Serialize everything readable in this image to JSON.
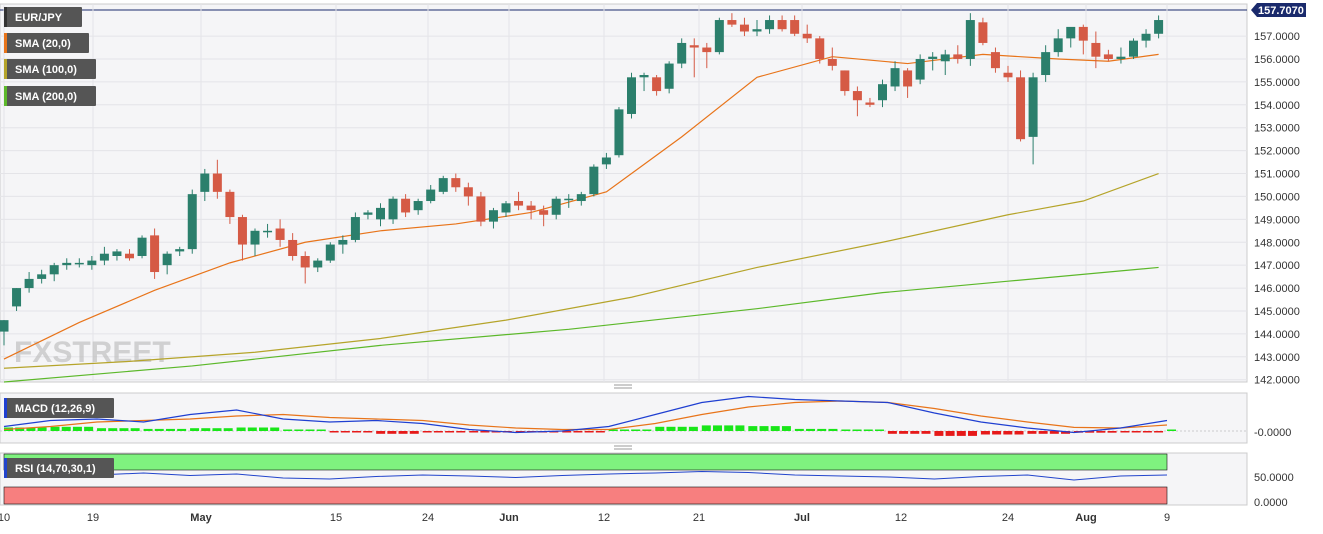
{
  "instrument": "EUR/JPY",
  "watermark": "FXSTREET",
  "legend": [
    {
      "label": "EUR/JPY",
      "color": "#555555"
    },
    {
      "label": "SMA (20,0)",
      "color": "#e8741a"
    },
    {
      "label": "SMA (100,0)",
      "color": "#b5a42a"
    },
    {
      "label": "SMA (200,0)",
      "color": "#5cb82a"
    }
  ],
  "macd": {
    "label": "MACD (12,26,9)",
    "value_label": "-0.0000"
  },
  "rsi": {
    "label": "RSI (14,70,30,1)",
    "ticks": [
      "50.0000",
      "0.0000"
    ]
  },
  "colors": {
    "up": "#2b7f6c",
    "down": "#d55a45",
    "sma20": "#e8741a",
    "sma100": "#b5a42a",
    "sma200": "#5cb82a",
    "macd": "#1f3fd1",
    "signal": "#e8741a",
    "hist_pos": "#19e619",
    "hist_neg": "#e61919",
    "rsi_line": "#2244cc",
    "rsi_upper": "#7ff27f",
    "rsi_lower": "#f77f7f"
  },
  "chart_data": {
    "type": "candlestick",
    "y_ticks": [
      "157.0000",
      "156.0000",
      "155.0000",
      "154.0000",
      "153.0000",
      "152.0000",
      "151.0000",
      "150.0000",
      "149.0000",
      "148.0000",
      "147.0000",
      "146.0000",
      "145.0000",
      "144.0000",
      "143.0000",
      "142.0000"
    ],
    "ylim": [
      141.9,
      158.4
    ],
    "last_price": "157.7070",
    "x_labels": [
      "10",
      "19",
      "May",
      "15",
      "24",
      "Jun",
      "12",
      "21",
      "Jul",
      "12",
      "24",
      "Aug",
      "9"
    ],
    "candles": [
      {
        "o": 144.1,
        "h": 144.6,
        "l": 143.5,
        "c": 144.6
      },
      {
        "o": 145.2,
        "h": 146.0,
        "l": 145.0,
        "c": 146.0
      },
      {
        "o": 146.0,
        "h": 146.7,
        "l": 145.8,
        "c": 146.4
      },
      {
        "o": 146.4,
        "h": 146.8,
        "l": 146.2,
        "c": 146.6
      },
      {
        "o": 146.6,
        "h": 147.1,
        "l": 146.3,
        "c": 147.0
      },
      {
        "o": 147.0,
        "h": 147.3,
        "l": 146.8,
        "c": 147.1
      },
      {
        "o": 147.1,
        "h": 147.3,
        "l": 146.9,
        "c": 147.1
      },
      {
        "o": 147.0,
        "h": 147.4,
        "l": 146.8,
        "c": 147.2
      },
      {
        "o": 147.2,
        "h": 147.8,
        "l": 147.0,
        "c": 147.5
      },
      {
        "o": 147.4,
        "h": 147.7,
        "l": 147.2,
        "c": 147.6
      },
      {
        "o": 147.5,
        "h": 147.7,
        "l": 147.2,
        "c": 147.3
      },
      {
        "o": 147.4,
        "h": 148.3,
        "l": 147.3,
        "c": 148.2
      },
      {
        "o": 148.3,
        "h": 148.6,
        "l": 146.4,
        "c": 146.7
      },
      {
        "o": 147.0,
        "h": 147.6,
        "l": 146.6,
        "c": 147.5
      },
      {
        "o": 147.6,
        "h": 147.8,
        "l": 147.4,
        "c": 147.7
      },
      {
        "o": 147.7,
        "h": 150.3,
        "l": 147.5,
        "c": 150.1
      },
      {
        "o": 150.2,
        "h": 151.2,
        "l": 149.8,
        "c": 151.0
      },
      {
        "o": 151.0,
        "h": 151.6,
        "l": 149.9,
        "c": 150.2
      },
      {
        "o": 150.2,
        "h": 150.3,
        "l": 148.8,
        "c": 149.1
      },
      {
        "o": 149.1,
        "h": 149.2,
        "l": 147.2,
        "c": 147.9
      },
      {
        "o": 147.9,
        "h": 148.6,
        "l": 147.4,
        "c": 148.5
      },
      {
        "o": 148.5,
        "h": 148.8,
        "l": 148.2,
        "c": 148.5
      },
      {
        "o": 148.6,
        "h": 149.0,
        "l": 147.8,
        "c": 148.1
      },
      {
        "o": 148.1,
        "h": 148.4,
        "l": 147.2,
        "c": 147.4
      },
      {
        "o": 147.4,
        "h": 147.6,
        "l": 146.2,
        "c": 146.9
      },
      {
        "o": 146.9,
        "h": 147.3,
        "l": 146.7,
        "c": 147.2
      },
      {
        "o": 147.2,
        "h": 148.0,
        "l": 147.1,
        "c": 147.9
      },
      {
        "o": 147.9,
        "h": 148.3,
        "l": 147.5,
        "c": 148.1
      },
      {
        "o": 148.1,
        "h": 149.3,
        "l": 148.0,
        "c": 149.1
      },
      {
        "o": 149.2,
        "h": 149.4,
        "l": 149.0,
        "c": 149.3
      },
      {
        "o": 149.0,
        "h": 149.7,
        "l": 148.7,
        "c": 149.5
      },
      {
        "o": 149.0,
        "h": 150.0,
        "l": 148.8,
        "c": 149.9
      },
      {
        "o": 149.9,
        "h": 150.1,
        "l": 149.1,
        "c": 149.3
      },
      {
        "o": 149.4,
        "h": 149.9,
        "l": 149.2,
        "c": 149.8
      },
      {
        "o": 149.8,
        "h": 150.5,
        "l": 149.7,
        "c": 150.3
      },
      {
        "o": 150.2,
        "h": 150.9,
        "l": 150.1,
        "c": 150.8
      },
      {
        "o": 150.8,
        "h": 151.0,
        "l": 150.2,
        "c": 150.4
      },
      {
        "o": 150.4,
        "h": 150.6,
        "l": 149.6,
        "c": 150.0
      },
      {
        "o": 150.0,
        "h": 150.2,
        "l": 148.7,
        "c": 148.9
      },
      {
        "o": 148.9,
        "h": 149.5,
        "l": 148.6,
        "c": 149.4
      },
      {
        "o": 149.3,
        "h": 149.8,
        "l": 149.1,
        "c": 149.7
      },
      {
        "o": 149.8,
        "h": 150.2,
        "l": 149.4,
        "c": 149.6
      },
      {
        "o": 149.6,
        "h": 149.8,
        "l": 149.0,
        "c": 149.4
      },
      {
        "o": 149.4,
        "h": 149.6,
        "l": 148.7,
        "c": 149.2
      },
      {
        "o": 149.2,
        "h": 150.0,
        "l": 149.0,
        "c": 149.9
      },
      {
        "o": 149.9,
        "h": 150.1,
        "l": 149.5,
        "c": 149.9
      },
      {
        "o": 149.8,
        "h": 150.2,
        "l": 149.6,
        "c": 150.1
      },
      {
        "o": 150.1,
        "h": 151.4,
        "l": 150.0,
        "c": 151.3
      },
      {
        "o": 151.4,
        "h": 151.9,
        "l": 151.2,
        "c": 151.7
      },
      {
        "o": 151.8,
        "h": 153.9,
        "l": 151.7,
        "c": 153.8
      },
      {
        "o": 153.6,
        "h": 155.4,
        "l": 153.4,
        "c": 155.2
      },
      {
        "o": 155.2,
        "h": 155.4,
        "l": 154.6,
        "c": 155.3
      },
      {
        "o": 155.2,
        "h": 155.3,
        "l": 154.4,
        "c": 154.6
      },
      {
        "o": 154.7,
        "h": 155.9,
        "l": 154.5,
        "c": 155.8
      },
      {
        "o": 155.8,
        "h": 156.9,
        "l": 155.6,
        "c": 156.7
      },
      {
        "o": 156.6,
        "h": 156.9,
        "l": 155.2,
        "c": 156.5
      },
      {
        "o": 156.5,
        "h": 156.7,
        "l": 155.6,
        "c": 156.3
      },
      {
        "o": 156.3,
        "h": 157.8,
        "l": 156.2,
        "c": 157.7
      },
      {
        "o": 157.7,
        "h": 158.0,
        "l": 157.4,
        "c": 157.5
      },
      {
        "o": 157.5,
        "h": 157.8,
        "l": 157.0,
        "c": 157.2
      },
      {
        "o": 157.2,
        "h": 157.7,
        "l": 157.0,
        "c": 157.3
      },
      {
        "o": 157.3,
        "h": 157.9,
        "l": 157.1,
        "c": 157.7
      },
      {
        "o": 157.7,
        "h": 157.9,
        "l": 157.2,
        "c": 157.3
      },
      {
        "o": 157.7,
        "h": 157.9,
        "l": 157.0,
        "c": 157.1
      },
      {
        "o": 157.1,
        "h": 157.5,
        "l": 156.7,
        "c": 156.9
      },
      {
        "o": 156.9,
        "h": 157.0,
        "l": 155.8,
        "c": 156.0
      },
      {
        "o": 156.0,
        "h": 156.5,
        "l": 155.5,
        "c": 155.7
      },
      {
        "o": 155.5,
        "h": 155.5,
        "l": 154.4,
        "c": 154.6
      },
      {
        "o": 154.6,
        "h": 154.8,
        "l": 153.5,
        "c": 154.2
      },
      {
        "o": 154.1,
        "h": 154.3,
        "l": 153.9,
        "c": 154.0
      },
      {
        "o": 154.2,
        "h": 155.1,
        "l": 153.9,
        "c": 154.9
      },
      {
        "o": 154.8,
        "h": 155.9,
        "l": 154.6,
        "c": 155.6
      },
      {
        "o": 155.5,
        "h": 155.6,
        "l": 154.3,
        "c": 154.8
      },
      {
        "o": 155.1,
        "h": 156.2,
        "l": 154.9,
        "c": 156.0
      },
      {
        "o": 156.0,
        "h": 156.3,
        "l": 155.5,
        "c": 156.1
      },
      {
        "o": 155.9,
        "h": 156.4,
        "l": 155.3,
        "c": 156.2
      },
      {
        "o": 156.2,
        "h": 156.6,
        "l": 155.8,
        "c": 156.0
      },
      {
        "o": 156.0,
        "h": 158.0,
        "l": 155.7,
        "c": 157.7
      },
      {
        "o": 157.6,
        "h": 157.8,
        "l": 156.6,
        "c": 156.7
      },
      {
        "o": 156.3,
        "h": 156.5,
        "l": 155.4,
        "c": 155.6
      },
      {
        "o": 155.4,
        "h": 155.7,
        "l": 155.0,
        "c": 155.2
      },
      {
        "o": 155.2,
        "h": 155.5,
        "l": 152.4,
        "c": 152.5
      },
      {
        "o": 152.6,
        "h": 155.4,
        "l": 151.4,
        "c": 155.2
      },
      {
        "o": 155.3,
        "h": 156.6,
        "l": 155.0,
        "c": 156.3
      },
      {
        "o": 156.3,
        "h": 157.3,
        "l": 156.1,
        "c": 156.9
      },
      {
        "o": 156.9,
        "h": 157.3,
        "l": 156.5,
        "c": 157.4
      },
      {
        "o": 157.4,
        "h": 157.5,
        "l": 156.2,
        "c": 156.8
      },
      {
        "o": 156.7,
        "h": 157.2,
        "l": 155.6,
        "c": 156.1
      },
      {
        "o": 156.2,
        "h": 156.4,
        "l": 155.9,
        "c": 156.0
      },
      {
        "o": 156.0,
        "h": 156.5,
        "l": 155.8,
        "c": 156.1
      },
      {
        "o": 156.1,
        "h": 156.9,
        "l": 156.0,
        "c": 156.8
      },
      {
        "o": 156.8,
        "h": 157.3,
        "l": 156.5,
        "c": 157.1
      },
      {
        "o": 157.1,
        "h": 157.9,
        "l": 156.9,
        "c": 157.7
      }
    ],
    "sma20": [
      [
        0,
        142.9
      ],
      [
        6,
        144.5
      ],
      [
        12,
        145.9
      ],
      [
        18,
        147.1
      ],
      [
        24,
        148.0
      ],
      [
        30,
        148.5
      ],
      [
        36,
        148.8
      ],
      [
        42,
        149.3
      ],
      [
        48,
        150.2
      ],
      [
        54,
        152.6
      ],
      [
        60,
        155.2
      ],
      [
        66,
        156.1
      ],
      [
        72,
        155.8
      ],
      [
        78,
        156.2
      ],
      [
        84,
        156.0
      ],
      [
        88,
        155.9
      ],
      [
        92,
        156.2
      ]
    ],
    "sma100": [
      [
        0,
        142.5
      ],
      [
        10,
        142.8
      ],
      [
        20,
        143.2
      ],
      [
        30,
        143.8
      ],
      [
        40,
        144.6
      ],
      [
        50,
        145.6
      ],
      [
        60,
        146.9
      ],
      [
        70,
        148.0
      ],
      [
        80,
        149.2
      ],
      [
        86,
        149.8
      ],
      [
        92,
        151.0
      ]
    ],
    "sma200": [
      [
        0,
        141.9
      ],
      [
        15,
        142.6
      ],
      [
        30,
        143.5
      ],
      [
        45,
        144.2
      ],
      [
        60,
        145.1
      ],
      [
        70,
        145.8
      ],
      [
        80,
        146.3
      ],
      [
        92,
        146.9
      ]
    ],
    "macd": [
      0.15,
      0.35,
      0.4,
      0.3,
      0.55,
      0.7,
      0.4,
      0.3,
      0.35,
      0.25,
      0.05,
      -0.05,
      0.0,
      0.15,
      0.55,
      0.95,
      1.15,
      1.05,
      1.0,
      0.95,
      0.6,
      0.3,
      0.1,
      -0.05,
      0.1,
      0.35
    ],
    "signal": [
      0.05,
      0.15,
      0.3,
      0.35,
      0.4,
      0.5,
      0.55,
      0.45,
      0.4,
      0.35,
      0.2,
      0.1,
      0.05,
      0.05,
      0.25,
      0.55,
      0.8,
      0.95,
      1.0,
      0.95,
      0.75,
      0.5,
      0.3,
      0.12,
      0.1,
      0.2
    ],
    "hist": [
      0.25,
      0.3,
      0.2,
      0.15,
      0.2,
      0.25,
      0.1,
      -0.1,
      -0.2,
      -0.1,
      -0.1,
      -0.05,
      -0.1,
      0.05,
      0.3,
      0.4,
      0.35,
      0.15,
      0.05,
      -0.2,
      -0.35,
      -0.25,
      -0.2,
      -0.12,
      -0.05,
      0.0
    ],
    "rsi": [
      55,
      60,
      58,
      62,
      57,
      60,
      52,
      50,
      55,
      58,
      56,
      53,
      57,
      60,
      62,
      65,
      63,
      58,
      56,
      54,
      50,
      55,
      58,
      48,
      56,
      58
    ]
  }
}
